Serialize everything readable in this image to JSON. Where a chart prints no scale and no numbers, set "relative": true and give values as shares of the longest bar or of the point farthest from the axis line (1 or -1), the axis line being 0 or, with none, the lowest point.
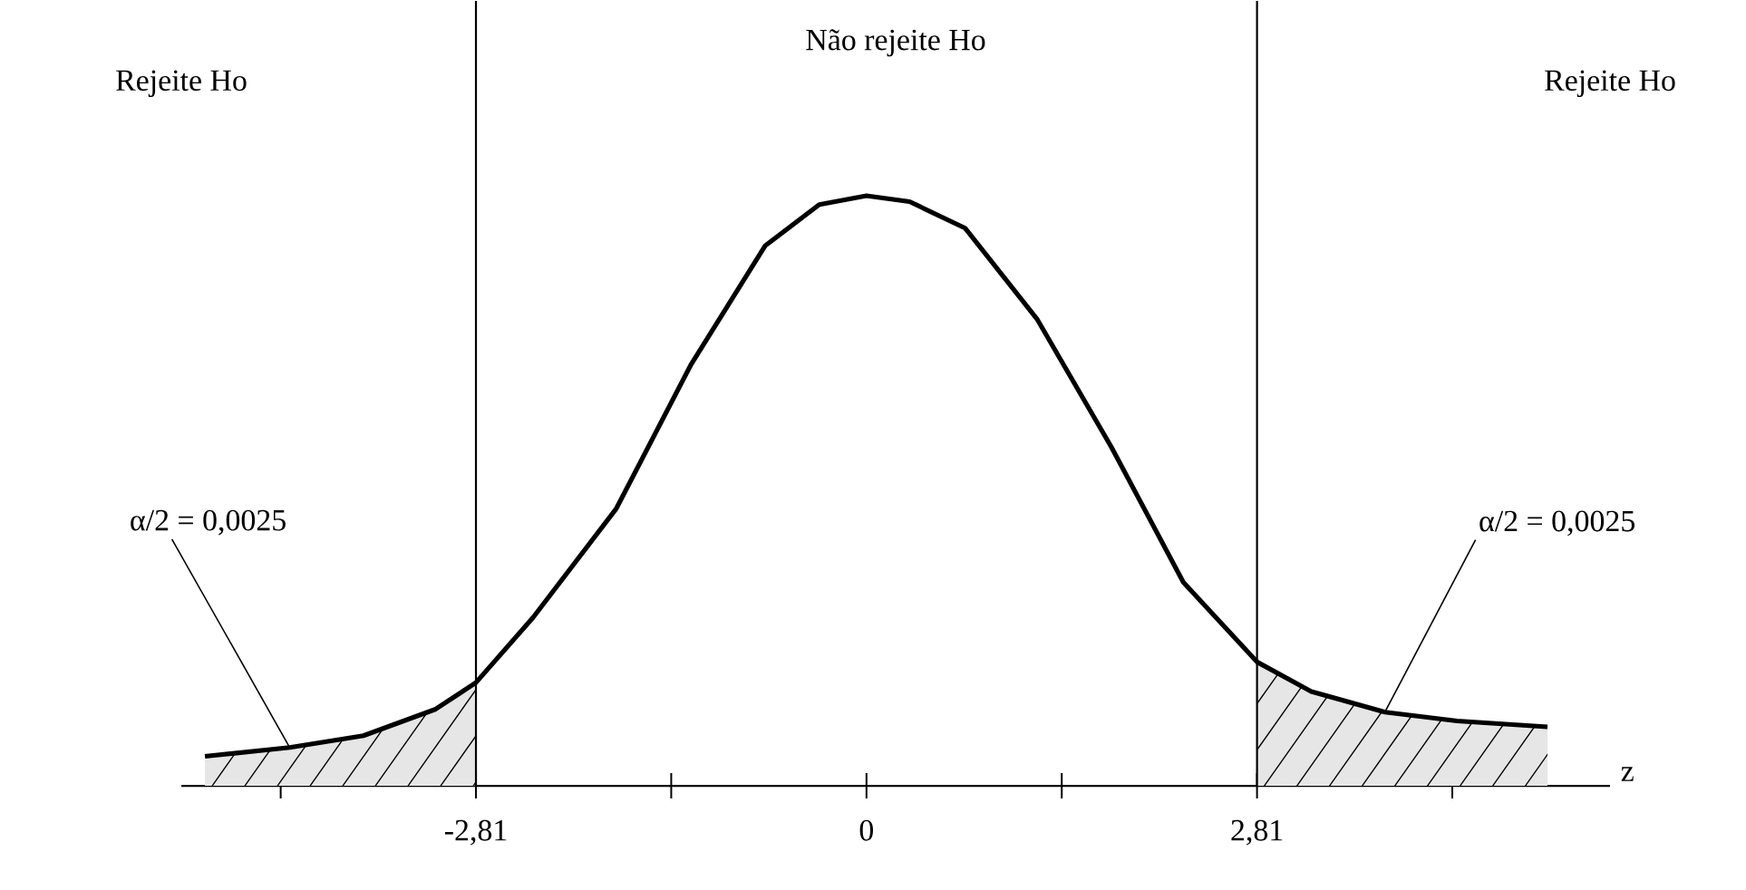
{
  "chart_data": {
    "type": "line",
    "relative": true,
    "xlabel": "z",
    "x": [
      -4.76,
      -4.15,
      -3.62,
      -3.1,
      -2.81,
      -2.4,
      -1.8,
      -1.26,
      -0.73,
      -0.34,
      0,
      0.31,
      0.71,
      1.23,
      1.76,
      2.28,
      2.81,
      3.2,
      3.73,
      4.25,
      4.9
    ],
    "series": [
      {
        "color": "#000000",
        "values": [
          0.05,
          0.065,
          0.085,
          0.13,
          0.175,
          0.285,
          0.47,
          0.715,
          0.915,
          0.985,
          1,
          0.99,
          0.945,
          0.79,
          0.575,
          0.345,
          0.21,
          0.16,
          0.125,
          0.11,
          0.1
        ]
      },
      {
        "type": "area",
        "color": "#e6e6e6",
        "x": [
          -4.76,
          -4.15,
          -3.62,
          -3.1,
          -2.81
        ],
        "values": [
          0.05,
          0.065,
          0.085,
          0.13,
          0.175
        ]
      },
      {
        "type": "area",
        "color": "#e6e6e6",
        "x": [
          2.81,
          3.2,
          3.73,
          4.25,
          4.9
        ],
        "values": [
          0.21,
          0.16,
          0.125,
          0.11,
          0.1
        ]
      }
    ],
    "xlim": [
      -4.93,
      5.35
    ],
    "xticks": [
      {
        "value": -4.215,
        "label": null
      },
      {
        "value": -2.81,
        "label": "-2,81"
      },
      {
        "value": -1.405,
        "label": null
      },
      {
        "value": 0,
        "label": "0"
      },
      {
        "value": 1.405,
        "label": null
      },
      {
        "value": 2.81,
        "label": "2,81"
      },
      {
        "value": 4.215,
        "label": null
      }
    ],
    "ref_lines": [
      {
        "axis": "x",
        "value": -2.81,
        "color": "#000000"
      },
      {
        "axis": "x",
        "value": 2.81,
        "color": "#000000"
      }
    ],
    "annotations": [
      "Não rejeite Ho",
      "Rejeite Ho",
      "Rejeite Ho",
      {
        "text": "α/2 = 0,0025",
        "x": -4.15,
        "y": 0.065
      },
      {
        "text": "α/2 = 0,0025",
        "x": 3.73,
        "y": 0.125
      }
    ],
    "grid": false,
    "marker": "none",
    "line_style": "solid",
    "tick_labels": "x"
  }
}
